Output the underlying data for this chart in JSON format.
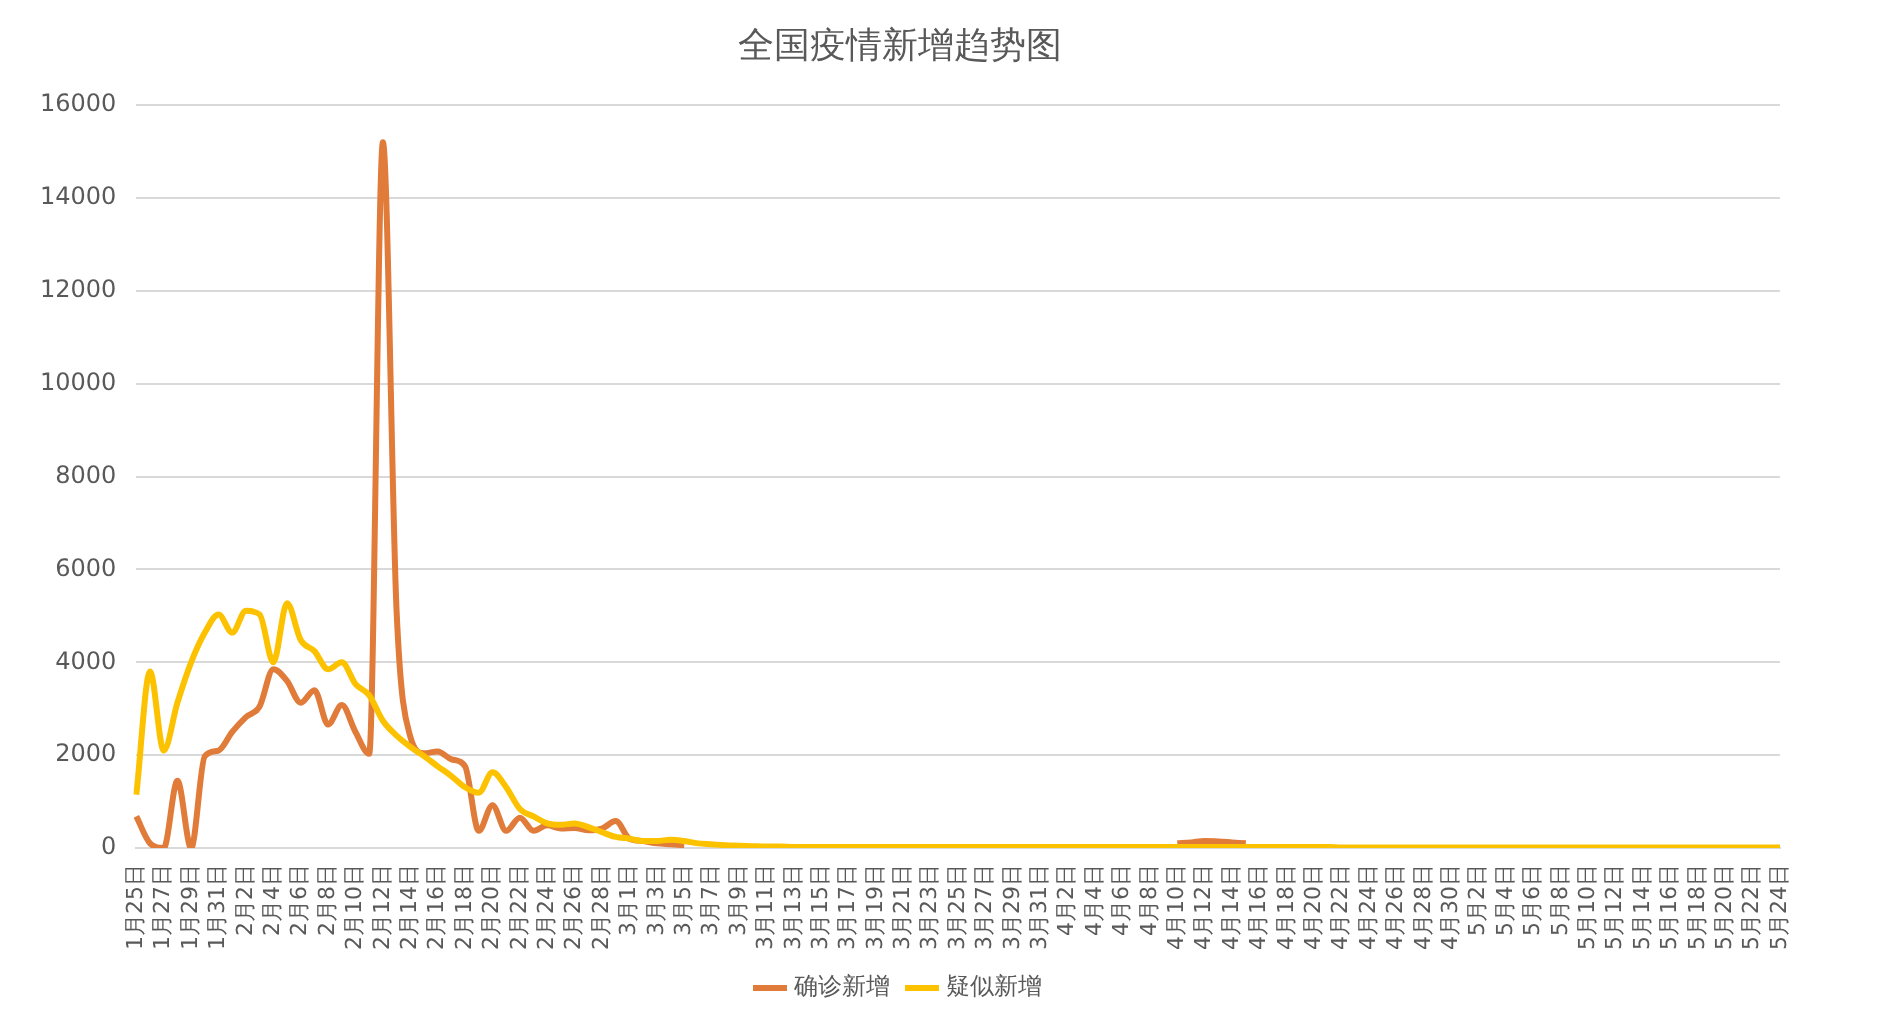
{
  "chart_data": {
    "type": "line",
    "title": "全国疫情新增趋势图",
    "categories": [
      "1月25日",
      null,
      "1月27日",
      null,
      "1月29日",
      null,
      "1月31日",
      null,
      "2月2日",
      null,
      "2月4日",
      null,
      "2月6日",
      null,
      "2月8日",
      null,
      "2月10日",
      null,
      "2月12日",
      null,
      "2月14日",
      null,
      "2月16日",
      null,
      "2月18日",
      null,
      "2月20日",
      null,
      "2月22日",
      null,
      "2月24日",
      null,
      "2月26日",
      null,
      "2月28日",
      null,
      "3月1日",
      null,
      "3月3日",
      null,
      "3月5日",
      null,
      "3月7日",
      null,
      "3月9日",
      null,
      "3月11日",
      null,
      "3月13日",
      null,
      "3月15日",
      null,
      "3月17日",
      null,
      "3月19日",
      null,
      "3月21日",
      null,
      "3月23日",
      null,
      "3月25日",
      null,
      "3月27日",
      null,
      "3月29日",
      null,
      "3月31日",
      null,
      "4月2日",
      null,
      "4月4日",
      null,
      "4月6日",
      null,
      "4月8日",
      null,
      "4月10日",
      null,
      "4月12日",
      null,
      "4月14日",
      null,
      "4月16日",
      null,
      "4月18日",
      null,
      "4月20日",
      null,
      "4月22日",
      null,
      "4月24日",
      null,
      "4月26日",
      null,
      "4月28日",
      null,
      "4月30日",
      null,
      "5月2日",
      null,
      "5月4日",
      null,
      "5月6日",
      null,
      "5月8日",
      null,
      "5月10日",
      null,
      "5月12日",
      null,
      "5月14日",
      null,
      "5月16日",
      null,
      "5月18日",
      null,
      "5月20日",
      null,
      "5月22日",
      null,
      "5月24日"
    ],
    "series": [
      {
        "name": "确诊新增",
        "color": "#e07b39",
        "values": [
          680,
          100,
          0,
          1450,
          0,
          1980,
          2100,
          2500,
          2820,
          3050,
          3850,
          3600,
          3130,
          3400,
          2660,
          3080,
          2500,
          2030,
          15200,
          5100,
          2400,
          2040,
          2080,
          1910,
          1760,
          370,
          920,
          370,
          650,
          370,
          490,
          420,
          430,
          380,
          420,
          580,
          200,
          150,
          100,
          80,
          60,
          null,
          null,
          null,
          null,
          null,
          null,
          null,
          null,
          null,
          null,
          null,
          null,
          null,
          null,
          null,
          null,
          null,
          null,
          null,
          null,
          null,
          null,
          null,
          null,
          null,
          null,
          null,
          null,
          null,
          null,
          null,
          null,
          null,
          null,
          null,
          100,
          120,
          150,
          140,
          120,
          100,
          null,
          null,
          null,
          null,
          null,
          null,
          null,
          null,
          null,
          null,
          null,
          null,
          null,
          null,
          null,
          null,
          null,
          null,
          null,
          null,
          null,
          null,
          null,
          null,
          null,
          null,
          null,
          null,
          null,
          null,
          null,
          null,
          null,
          null,
          null,
          null,
          null,
          null,
          null
        ]
      },
      {
        "name": "疑似新增",
        "color": "#fcc200",
        "values": [
          1150,
          3800,
          2100,
          3130,
          4000,
          4640,
          5030,
          4640,
          5110,
          5030,
          4000,
          5270,
          4480,
          4240,
          3850,
          4000,
          3530,
          3290,
          2740,
          2420,
          2180,
          1980,
          1760,
          1550,
          1310,
          1190,
          1630,
          1310,
          840,
          680,
          530,
          500,
          530,
          450,
          340,
          240,
          200,
          150,
          150,
          180,
          150,
          100,
          80,
          60,
          50,
          40,
          30,
          30,
          20,
          20,
          20,
          20,
          20,
          20,
          20,
          20,
          20,
          20,
          20,
          20,
          20,
          20,
          20,
          20,
          20,
          20,
          20,
          20,
          20,
          20,
          20,
          20,
          20,
          20,
          20,
          20,
          20,
          20,
          20,
          20,
          20,
          20,
          20,
          20,
          20,
          20,
          20,
          20,
          10,
          10,
          10,
          10,
          10,
          10,
          10,
          10,
          10,
          10,
          10,
          10,
          10,
          10,
          10,
          10,
          10,
          10,
          10,
          10,
          10,
          10,
          10,
          10,
          10,
          10,
          10,
          10,
          10,
          10,
          10,
          10,
          10
        ]
      }
    ],
    "ylim": [
      0,
      16000
    ],
    "yticks": [
      0,
      2000,
      4000,
      6000,
      8000,
      10000,
      12000,
      14000,
      16000
    ],
    "grid": "y",
    "legend": "bottom",
    "marker": "none",
    "line_style": "solid"
  }
}
